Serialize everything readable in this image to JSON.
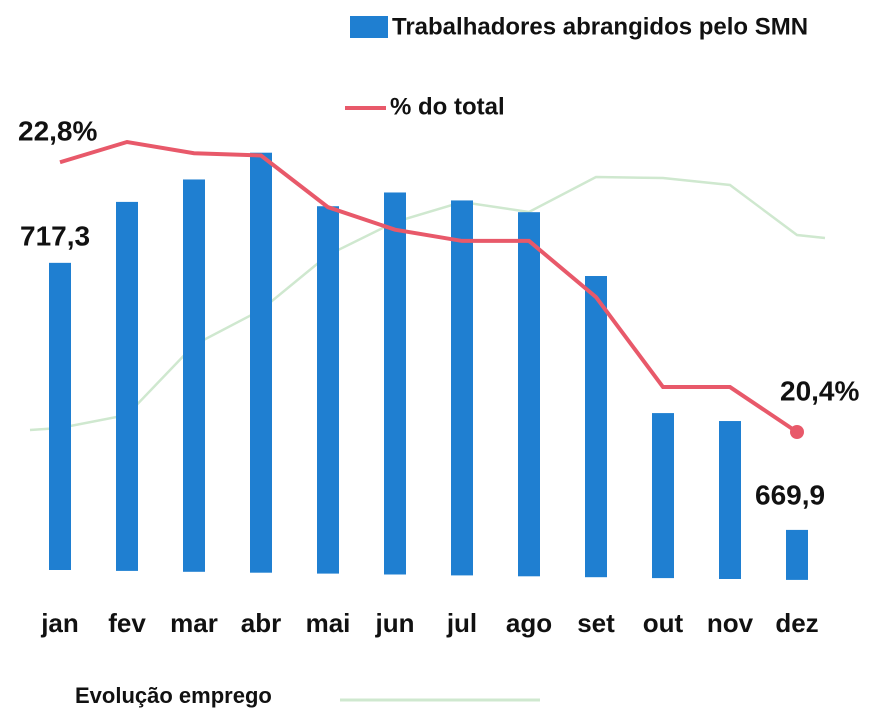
{
  "chart_data": {
    "type": "bar-line",
    "categories": [
      "jan",
      "fev",
      "mar",
      "abr",
      "mai",
      "jun",
      "jul",
      "ago",
      "set",
      "out",
      "nov",
      "dez"
    ],
    "series": [
      {
        "name": "Trabalhadores abrangidos pelo SMN",
        "type": "bar",
        "color": "#1f7fd1",
        "values": [
          717.3,
          728.7,
          733.0,
          738.1,
          728.4,
          731.1,
          729.8,
          727.8,
          716.2,
          691.1,
          689.8,
          669.9
        ],
        "value_labels": [
          "717,3",
          null,
          null,
          null,
          null,
          null,
          null,
          null,
          null,
          null,
          null,
          "669,9"
        ]
      },
      {
        "name": "% do total",
        "type": "line",
        "color": "#e8596a",
        "values": [
          22.8,
          22.98,
          22.88,
          22.86,
          22.4,
          22.2,
          22.1,
          22.1,
          21.6,
          20.8,
          20.8,
          20.4
        ],
        "value_labels": [
          "22,8%",
          null,
          null,
          null,
          null,
          null,
          null,
          null,
          null,
          null,
          null,
          "20,4%"
        ]
      },
      {
        "name": "Evolução emprego",
        "type": "line",
        "color": "#cfe8cf",
        "values": [
          172,
          185,
          255,
          290,
          345,
          378,
          398,
          388,
          423,
          422,
          415,
          365
        ]
      }
    ]
  }
}
